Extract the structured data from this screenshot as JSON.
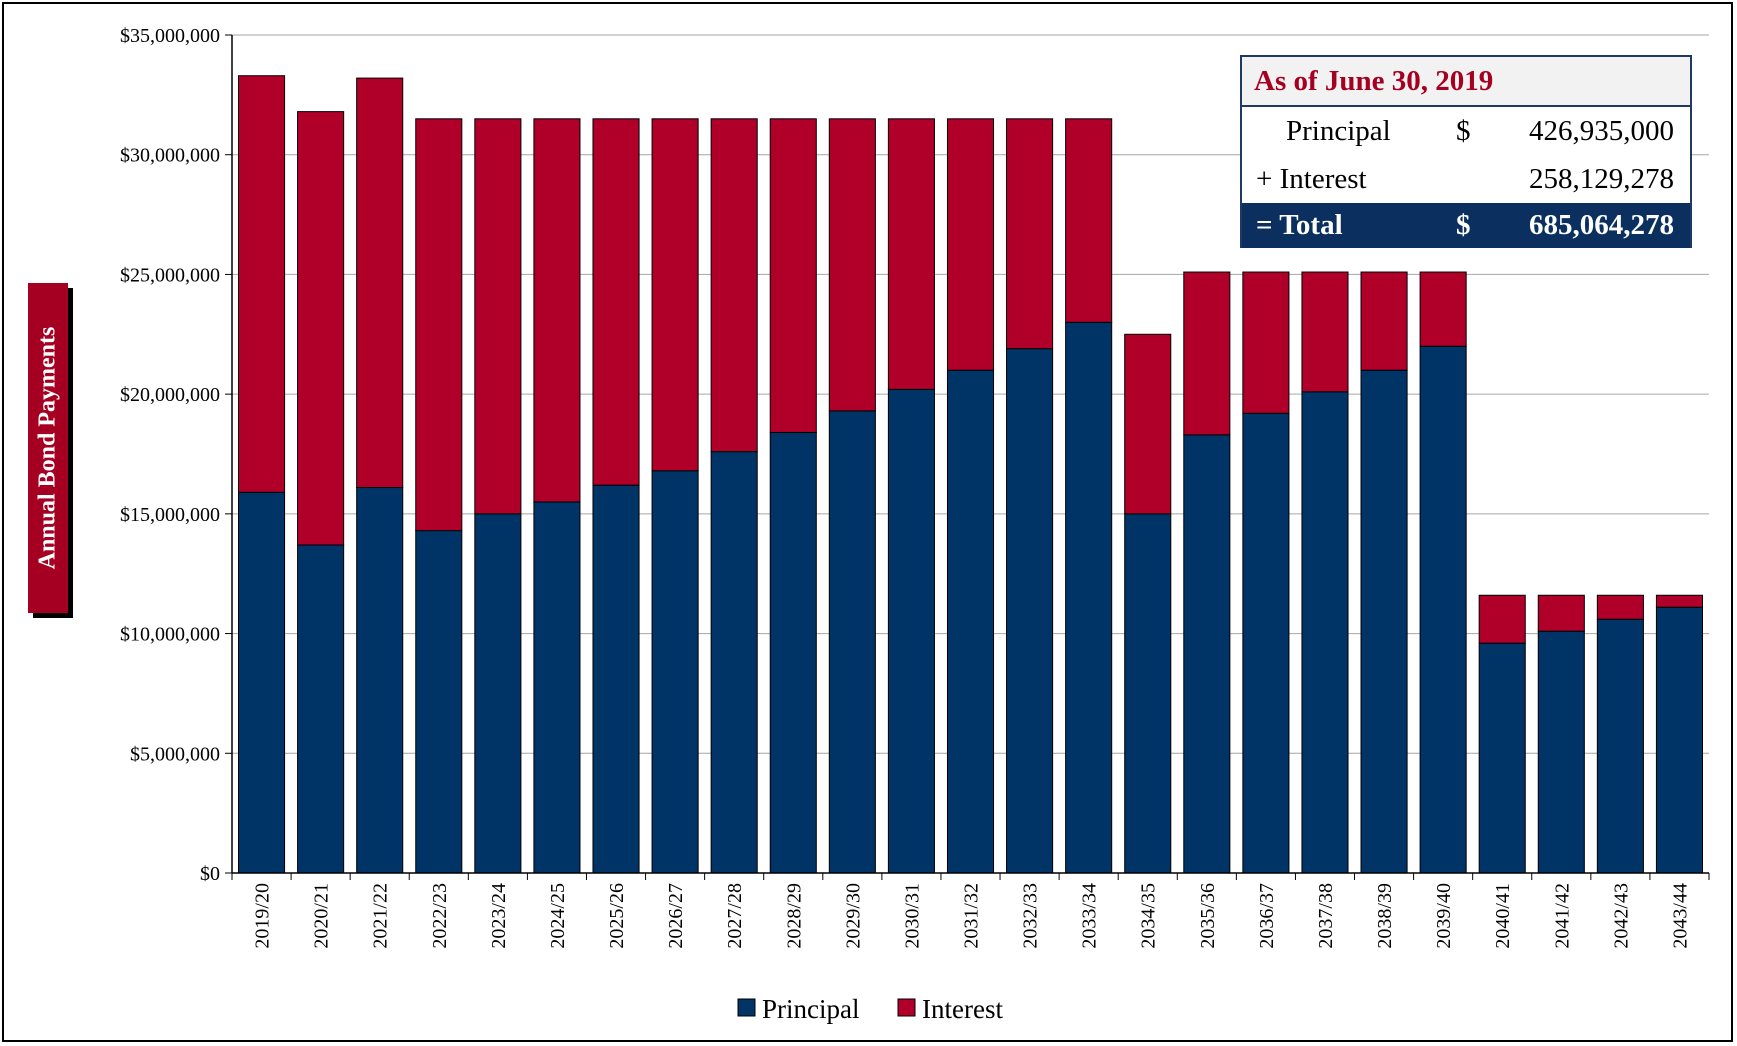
{
  "chart_data": {
    "type": "bar",
    "stacked": true,
    "categories": [
      "2019/20",
      "2020/21",
      "2021/22",
      "2022/23",
      "2023/24",
      "2024/25",
      "2025/26",
      "2026/27",
      "2027/28",
      "2028/29",
      "2029/30",
      "2030/31",
      "2031/32",
      "2032/33",
      "2033/34",
      "2034/35",
      "2035/36",
      "2036/37",
      "2037/38",
      "2038/39",
      "2039/40",
      "2040/41",
      "2041/42",
      "2042/43",
      "2043/44"
    ],
    "series": [
      {
        "name": "Principal",
        "color": "#003366",
        "values": [
          15900000,
          13700000,
          16100000,
          14300000,
          15000000,
          15500000,
          16200000,
          16800000,
          17600000,
          18400000,
          19300000,
          20200000,
          21000000,
          21900000,
          23000000,
          15000000,
          18300000,
          19200000,
          20100000,
          21000000,
          22000000,
          9600000,
          10100000,
          10600000,
          11100000
        ]
      },
      {
        "name": "Interest",
        "color": "#b0002a",
        "values": [
          17400000,
          18100000,
          17100000,
          17200000,
          16500000,
          16000000,
          15300000,
          14700000,
          13900000,
          13100000,
          12200000,
          11300000,
          10500000,
          9600000,
          8500000,
          7500000,
          6800000,
          5900000,
          5000000,
          4100000,
          3100000,
          2000000,
          1500000,
          1000000,
          500000
        ]
      }
    ],
    "ylabel": "Annual Bond Payments",
    "ylim": [
      0,
      35000000
    ],
    "yticks": [
      "$0",
      "$5,000,000",
      "$10,000,000",
      "$15,000,000",
      "$20,000,000",
      "$25,000,000",
      "$30,000,000",
      "$35,000,000"
    ],
    "grid": true,
    "legend": "bottom"
  },
  "summary_box": {
    "title": "As of June 30, 2019",
    "principal_label": "Principal",
    "principal_currency": "$",
    "principal_value": "426,935,000",
    "interest_label": "+ Interest",
    "interest_value": "258,129,278",
    "total_label": "= Total",
    "total_currency": "$",
    "total_value": "685,064,278"
  }
}
